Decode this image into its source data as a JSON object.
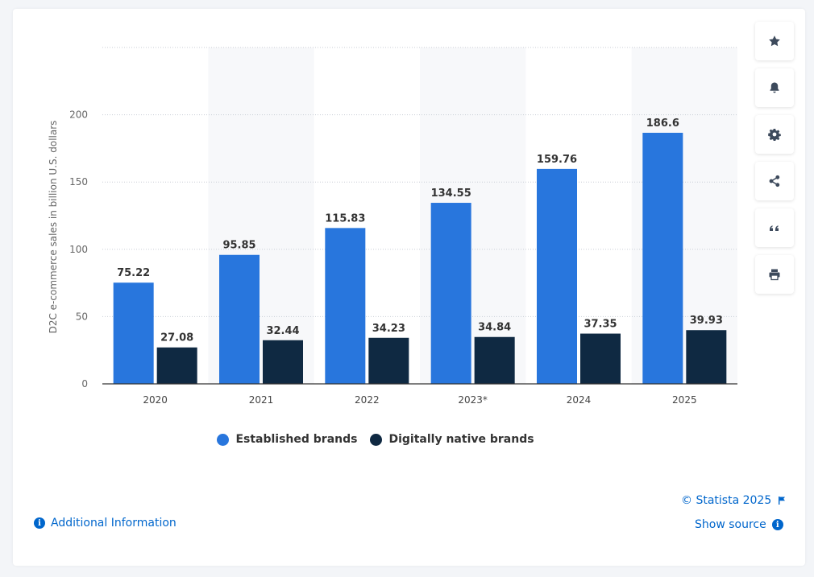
{
  "chart_data": {
    "type": "bar",
    "categories": [
      "2020",
      "2021",
      "2022",
      "2023*",
      "2024",
      "2025"
    ],
    "series": [
      {
        "name": "Established brands",
        "values": [
          75.22,
          95.85,
          115.83,
          134.55,
          159.76,
          186.6
        ],
        "color": "#2876dd"
      },
      {
        "name": "Digitally native brands",
        "values": [
          27.08,
          32.44,
          34.23,
          34.84,
          37.35,
          39.93
        ],
        "color": "#0f2942"
      }
    ],
    "ylabel": "D2C e-commerce sales in billion U.S. dollars",
    "yticks": [
      0,
      50,
      100,
      150,
      200
    ],
    "ylim": [
      0,
      250
    ],
    "grid": true
  },
  "toolbar": {
    "icons": [
      "star-icon",
      "bell-icon",
      "gear-icon",
      "share-icon",
      "quote-icon",
      "print-icon"
    ]
  },
  "footer": {
    "copyright": "© Statista 2025",
    "show_source": "Show source",
    "additional_info": "Additional Information"
  }
}
